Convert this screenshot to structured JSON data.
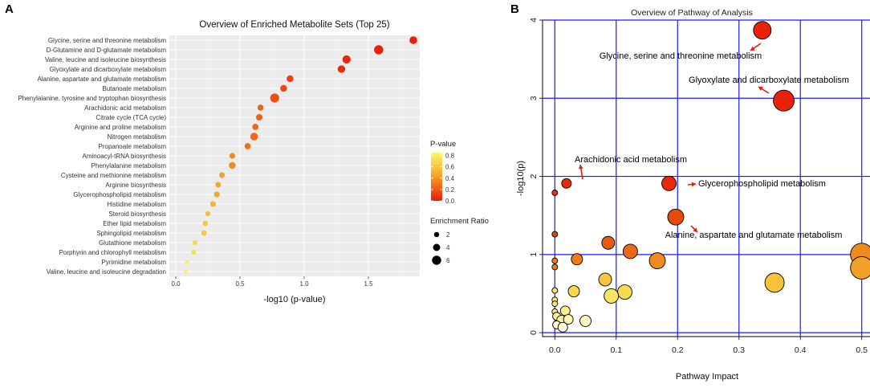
{
  "panels": {
    "a": "A",
    "b": "B"
  },
  "chart_data": [
    {
      "type": "scatter",
      "panel": "A",
      "title": "Overview of Enriched Metabolite Sets (Top 25)",
      "xlabel": "-log10 (p-value)",
      "ylabel": "",
      "xlim": [
        -0.05,
        1.9
      ],
      "xticks": [
        0.0,
        0.5,
        1.0,
        1.5
      ],
      "xtick_labels": [
        "0.0",
        "0.5",
        "1.0",
        "1.5"
      ],
      "grid": true,
      "legend": {
        "color_title": "P-value",
        "color_ticks": [
          0.0,
          0.2,
          0.4,
          0.6,
          0.8
        ],
        "color_tick_labels": [
          "0.0",
          "0.2",
          "0.4",
          "0.6",
          "0.8"
        ],
        "size_title": "Enrichment Ratio",
        "size_values": [
          2,
          4,
          6
        ],
        "size_labels": [
          "2",
          "4",
          "6"
        ]
      },
      "points": [
        {
          "name": "Glycine, serine and threonine metabolism",
          "x": 1.85,
          "p": 0.014,
          "ratio": 4.5
        },
        {
          "name": "D-Glutamine and D-glutamate metabolism",
          "x": 1.58,
          "p": 0.026,
          "ratio": 6.0
        },
        {
          "name": "Valine, leucine and isoleucine biosynthesis",
          "x": 1.33,
          "p": 0.047,
          "ratio": 5.0
        },
        {
          "name": "Glyoxylate and dicarboxylate metabolism",
          "x": 1.29,
          "p": 0.051,
          "ratio": 4.3
        },
        {
          "name": "Alanine, aspartate and glutamate metabolism",
          "x": 0.89,
          "p": 0.129,
          "ratio": 3.6
        },
        {
          "name": "Butanoate metabolism",
          "x": 0.84,
          "p": 0.145,
          "ratio": 3.6
        },
        {
          "name": "Phenylalanine, tyrosine and tryptophan biosynthesis",
          "x": 0.77,
          "p": 0.17,
          "ratio": 5.8
        },
        {
          "name": "Arachidonic acid metabolism",
          "x": 0.66,
          "p": 0.219,
          "ratio": 2.8
        },
        {
          "name": "Citrate cycle (TCA cycle)",
          "x": 0.65,
          "p": 0.224,
          "ratio": 3.3
        },
        {
          "name": "Arginine and proline metabolism",
          "x": 0.62,
          "p": 0.24,
          "ratio": 3.0
        },
        {
          "name": "Nitrogen metabolism",
          "x": 0.61,
          "p": 0.245,
          "ratio": 4.5
        },
        {
          "name": "Propanoate metabolism",
          "x": 0.56,
          "p": 0.275,
          "ratio": 3.0
        },
        {
          "name": "Aminoacyl-tRNA biosynthesis",
          "x": 0.44,
          "p": 0.363,
          "ratio": 2.6
        },
        {
          "name": "Phenylalanine metabolism",
          "x": 0.44,
          "p": 0.363,
          "ratio": 3.6
        },
        {
          "name": "Cysteine and methionine metabolism",
          "x": 0.36,
          "p": 0.437,
          "ratio": 2.4
        },
        {
          "name": "Arginine biosynthesis",
          "x": 0.33,
          "p": 0.468,
          "ratio": 2.4
        },
        {
          "name": "Glycerophospholipid metabolism",
          "x": 0.32,
          "p": 0.479,
          "ratio": 2.6
        },
        {
          "name": "Histidine metabolism",
          "x": 0.29,
          "p": 0.513,
          "ratio": 2.4
        },
        {
          "name": "Steroid biosynthesis",
          "x": 0.25,
          "p": 0.562,
          "ratio": 1.8
        },
        {
          "name": "Ether lipid metabolism",
          "x": 0.23,
          "p": 0.589,
          "ratio": 2.0
        },
        {
          "name": "Sphingolipid metabolism",
          "x": 0.22,
          "p": 0.603,
          "ratio": 2.2
        },
        {
          "name": "Glutathione metabolism",
          "x": 0.15,
          "p": 0.708,
          "ratio": 1.8
        },
        {
          "name": "Porphyrin and chlorophyll metabolism",
          "x": 0.14,
          "p": 0.724,
          "ratio": 1.8
        },
        {
          "name": "Pyrimidine metabolism",
          "x": 0.09,
          "p": 0.813,
          "ratio": 1.2
        },
        {
          "name": "Valine, leucine and isoleucine degradation",
          "x": 0.08,
          "p": 0.832,
          "ratio": 1.2
        }
      ]
    },
    {
      "type": "scatter",
      "panel": "B",
      "title": "Overview of Pathway of Analysis",
      "xlabel": "Pathway Impact",
      "ylabel": "-log10(p)",
      "xlim": [
        -0.02,
        0.52
      ],
      "ylim": [
        -0.05,
        4.0
      ],
      "xticks": [
        0.0,
        0.1,
        0.2,
        0.3,
        0.4,
        0.5
      ],
      "xtick_labels": [
        "0.0",
        "0.1",
        "0.2",
        "0.3",
        "0.4",
        "0.5"
      ],
      "yticks": [
        0,
        1,
        2,
        3,
        4
      ],
      "ytick_labels": [
        "0",
        "1",
        "2",
        "3",
        "4"
      ],
      "grid": true,
      "points": [
        {
          "x": 0.338,
          "y": 3.87,
          "r": 11,
          "color": "#e8210a"
        },
        {
          "x": 0.373,
          "y": 2.97,
          "r": 13,
          "color": "#e8210a"
        },
        {
          "x": 0.186,
          "y": 1.91,
          "r": 9,
          "color": "#e8280a"
        },
        {
          "x": 0.019,
          "y": 1.91,
          "r": 6,
          "color": "#e8280a"
        },
        {
          "x": 0.197,
          "y": 1.48,
          "r": 10,
          "color": "#e84a0e"
        },
        {
          "x": 0.0,
          "y": 1.79,
          "r": 3.5,
          "color": "#e8300a"
        },
        {
          "x": 0.0,
          "y": 1.26,
          "r": 3.5,
          "color": "#e8420c"
        },
        {
          "x": 0.087,
          "y": 1.15,
          "r": 8,
          "color": "#e85a12"
        },
        {
          "x": 0.123,
          "y": 1.04,
          "r": 9,
          "color": "#e86a16"
        },
        {
          "x": 0.167,
          "y": 0.92,
          "r": 10,
          "color": "#ee8a1e"
        },
        {
          "x": 0.036,
          "y": 0.94,
          "r": 7,
          "color": "#ee7a18"
        },
        {
          "x": 0.0,
          "y": 0.92,
          "r": 3.5,
          "color": "#ee7a18"
        },
        {
          "x": 0.0,
          "y": 0.84,
          "r": 3.5,
          "color": "#ee7e1a"
        },
        {
          "x": 0.5,
          "y": 1.0,
          "r": 14,
          "color": "#ee8a1e"
        },
        {
          "x": 0.5,
          "y": 0.83,
          "r": 14,
          "color": "#f2a02a"
        },
        {
          "x": 0.358,
          "y": 0.64,
          "r": 12,
          "color": "#f5c23a"
        },
        {
          "x": 0.082,
          "y": 0.68,
          "r": 8,
          "color": "#f6c640"
        },
        {
          "x": 0.114,
          "y": 0.52,
          "r": 9,
          "color": "#f8dc50"
        },
        {
          "x": 0.092,
          "y": 0.47,
          "r": 9,
          "color": "#f9e460"
        },
        {
          "x": 0.031,
          "y": 0.53,
          "r": 7,
          "color": "#f8d84c"
        },
        {
          "x": 0.0,
          "y": 0.54,
          "r": 3.5,
          "color": "#f8e060"
        },
        {
          "x": 0.0,
          "y": 0.42,
          "r": 3.5,
          "color": "#f9e868"
        },
        {
          "x": 0.0,
          "y": 0.37,
          "r": 3.5,
          "color": "#f9ea70"
        },
        {
          "x": 0.0,
          "y": 0.27,
          "r": 3.5,
          "color": "#f9ee80"
        },
        {
          "x": 0.017,
          "y": 0.28,
          "r": 6,
          "color": "#fbf08a"
        },
        {
          "x": 0.003,
          "y": 0.21,
          "r": 5,
          "color": "#fbf294"
        },
        {
          "x": 0.011,
          "y": 0.16,
          "r": 6,
          "color": "#fcf4a4"
        },
        {
          "x": 0.022,
          "y": 0.17,
          "r": 6,
          "color": "#fcf6b0"
        },
        {
          "x": 0.05,
          "y": 0.15,
          "r": 7,
          "color": "#fdf8c4"
        },
        {
          "x": 0.003,
          "y": 0.1,
          "r": 5,
          "color": "#fefad0"
        },
        {
          "x": 0.013,
          "y": 0.07,
          "r": 6,
          "color": "#fefcde"
        }
      ],
      "annotations": [
        {
          "label": "Glycine, serine and threonine metabolism",
          "x": 0.338,
          "y": 3.87
        },
        {
          "label": "Glyoxylate and dicarboxylate metabolism",
          "x": 0.373,
          "y": 2.97
        },
        {
          "label": "Arachidonic acid metabolism",
          "x": 0.019,
          "y": 1.91
        },
        {
          "label": "Glycerophospholipid metabolism",
          "x": 0.186,
          "y": 1.91
        },
        {
          "label": "Alanine, aspartate and glutamate metabolism",
          "x": 0.197,
          "y": 1.48
        }
      ]
    }
  ]
}
